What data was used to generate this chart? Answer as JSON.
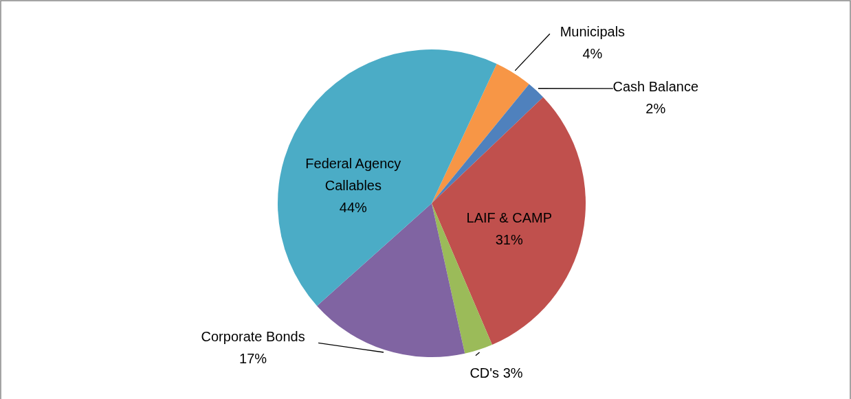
{
  "chart_data": {
    "type": "pie",
    "categories": [
      "Municipals",
      "Cash Balance",
      "LAIF & CAMP",
      "CD's",
      "Corporate Bonds",
      "Federal Agency Callables"
    ],
    "values": [
      4,
      2,
      31,
      3,
      17,
      44
    ],
    "value_labels": [
      "4%",
      "2%",
      "31%",
      "3%",
      "17%",
      "44%"
    ],
    "colors": [
      "#f79646",
      "#4f81bd",
      "#c0504d",
      "#9bbb59",
      "#8064a2",
      "#4bacc6"
    ]
  }
}
